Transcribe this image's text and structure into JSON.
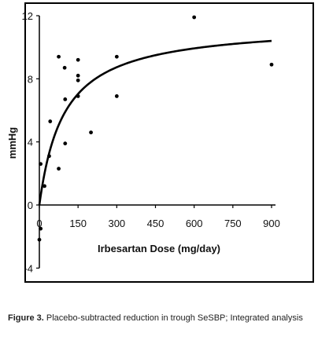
{
  "chart_data": {
    "type": "scatter",
    "xlabel": "Irbesartan Dose (mg/day)",
    "ylabel": "mmHg",
    "x_ticks": [
      0,
      150,
      300,
      450,
      600,
      750,
      900
    ],
    "y_ticks": [
      -4,
      0,
      4,
      8,
      12
    ],
    "xlim": [
      -5,
      920
    ],
    "ylim": [
      -4,
      12
    ],
    "grid": false,
    "legend": "none",
    "points": [
      {
        "x": 0,
        "y": -2.2
      },
      {
        "x": 5,
        "y": -1.5
      },
      {
        "x": 5,
        "y": 2.6
      },
      {
        "x": 20,
        "y": 1.2
      },
      {
        "x": 38,
        "y": 3.1
      },
      {
        "x": 42,
        "y": 5.3
      },
      {
        "x": 75,
        "y": 9.4
      },
      {
        "x": 75,
        "y": 2.3
      },
      {
        "x": 98,
        "y": 8.7
      },
      {
        "x": 100,
        "y": 6.7
      },
      {
        "x": 100,
        "y": 3.9
      },
      {
        "x": 150,
        "y": 9.2
      },
      {
        "x": 150,
        "y": 8.2
      },
      {
        "x": 150,
        "y": 7.9
      },
      {
        "x": 150,
        "y": 6.9
      },
      {
        "x": 200,
        "y": 4.6
      },
      {
        "x": 300,
        "y": 9.4
      },
      {
        "x": 300,
        "y": 6.9
      },
      {
        "x": 600,
        "y": 11.9
      },
      {
        "x": 900,
        "y": 8.9
      }
    ],
    "fit_curve": {
      "emax": 11.5,
      "ed50": 95
    }
  },
  "caption": {
    "label": "Figure 3.",
    "text": " Placebo-subtracted reduction in trough SeSBP; Integrated analysis"
  }
}
